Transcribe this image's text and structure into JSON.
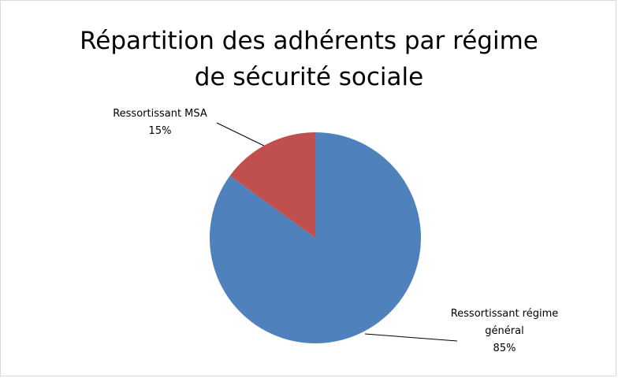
{
  "chart_data": {
    "type": "pie",
    "title": [
      "Répartition des adhérents par régime",
      "de sécurité sociale"
    ],
    "categories": [
      "Ressortissant régime général",
      "Ressortissant MSA"
    ],
    "values": [
      85,
      15
    ],
    "value_labels": [
      "85%",
      "15%"
    ],
    "colors": [
      "#4f81bd",
      "#c0504d"
    ]
  }
}
